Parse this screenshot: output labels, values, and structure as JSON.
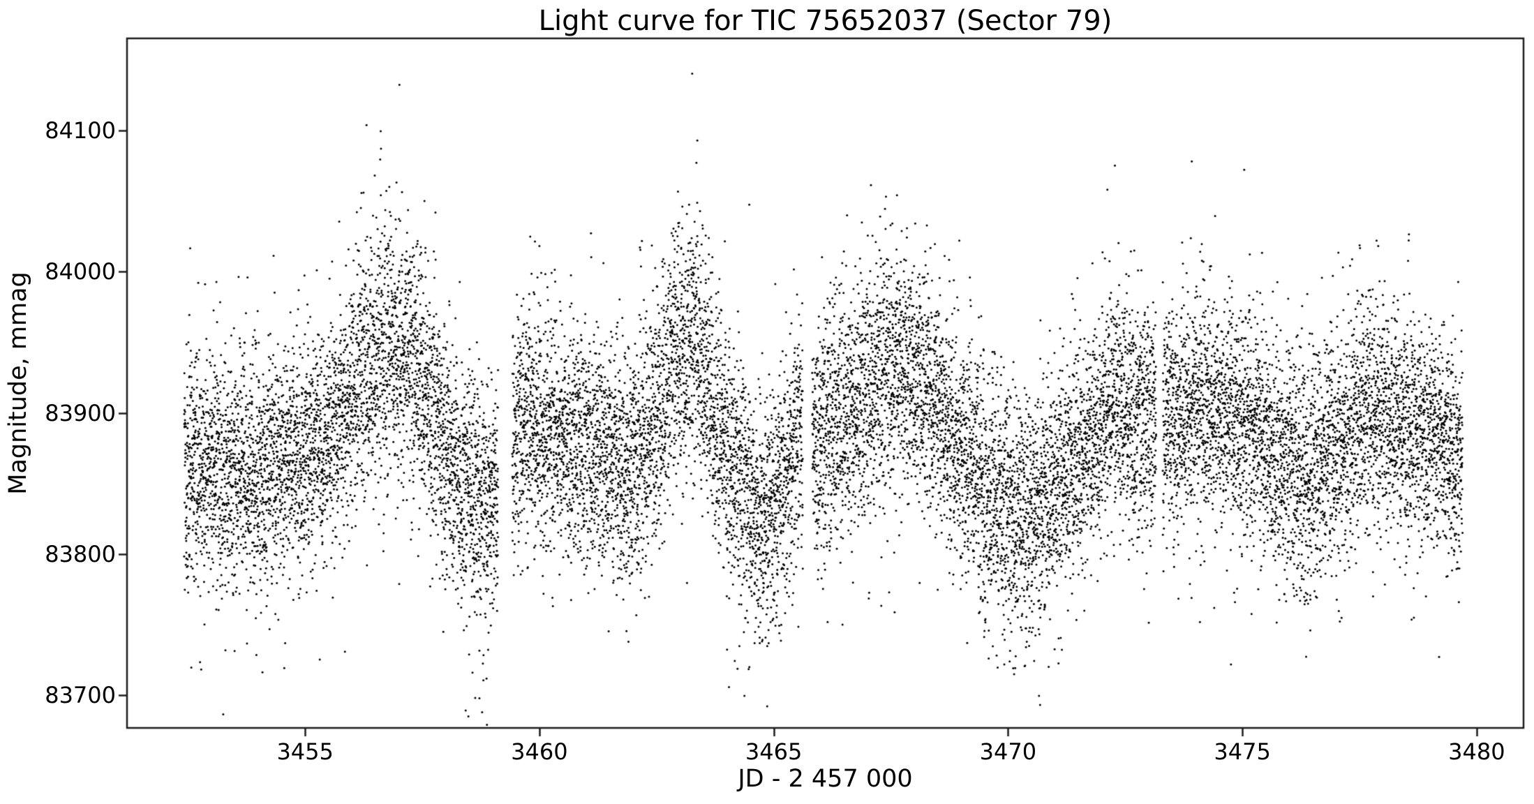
{
  "chart_data": {
    "type": "scatter",
    "title": "Light curve for TIC 75652037 (Sector 79)",
    "xlabel": "JD - 2 457 000",
    "ylabel": "Magnitude, mmag",
    "xlim": [
      3451.2,
      3481.0
    ],
    "ylim": [
      83677,
      84165
    ],
    "xticks": [
      3455,
      3460,
      3465,
      3470,
      3475,
      3480
    ],
    "yticks": [
      83700,
      83800,
      83900,
      84000,
      84100
    ],
    "grid": false,
    "legend": null,
    "marker": {
      "color": "#000000",
      "radius_px": 1.5
    },
    "x_start": 3452.42,
    "x_end": 3479.7,
    "cadence_days": 0.0015,
    "seed": 20240079,
    "gaps": [
      [
        3459.12,
        3459.42
      ],
      [
        3465.62,
        3465.82
      ],
      [
        3473.16,
        3473.3
      ]
    ],
    "mean_curve": [
      [
        3452.42,
        83862
      ],
      [
        3453.2,
        83858
      ],
      [
        3454.0,
        83860
      ],
      [
        3454.8,
        83868
      ],
      [
        3455.6,
        83885
      ],
      [
        3456.2,
        83925
      ],
      [
        3456.7,
        83948
      ],
      [
        3457.2,
        83940
      ],
      [
        3457.7,
        83900
      ],
      [
        3458.3,
        83850
      ],
      [
        3458.8,
        83832
      ],
      [
        3459.1,
        83845
      ],
      [
        3459.5,
        83888
      ],
      [
        3460.2,
        83885
      ],
      [
        3461.0,
        83875
      ],
      [
        3461.8,
        83862
      ],
      [
        3462.4,
        83885
      ],
      [
        3462.9,
        83935
      ],
      [
        3463.3,
        83945
      ],
      [
        3463.7,
        83905
      ],
      [
        3464.2,
        83852
      ],
      [
        3464.8,
        83820
      ],
      [
        3465.2,
        83845
      ],
      [
        3465.5,
        83885
      ],
      [
        3465.9,
        83880
      ],
      [
        3466.5,
        83898
      ],
      [
        3467.2,
        83922
      ],
      [
        3467.9,
        83928
      ],
      [
        3468.5,
        83905
      ],
      [
        3469.1,
        83868
      ],
      [
        3469.7,
        83838
      ],
      [
        3470.3,
        83828
      ],
      [
        3470.9,
        83842
      ],
      [
        3471.6,
        83875
      ],
      [
        3472.2,
        83900
      ],
      [
        3472.9,
        83898
      ],
      [
        3473.4,
        83892
      ],
      [
        3474.1,
        83900
      ],
      [
        3474.8,
        83898
      ],
      [
        3475.5,
        83880
      ],
      [
        3476.1,
        83860
      ],
      [
        3476.6,
        83858
      ],
      [
        3477.2,
        83885
      ],
      [
        3477.8,
        83902
      ],
      [
        3478.4,
        83892
      ],
      [
        3479.0,
        83878
      ],
      [
        3479.7,
        83872
      ]
    ],
    "sigma_curve": [
      [
        3452.42,
        40
      ],
      [
        3455.5,
        40
      ],
      [
        3456.7,
        44
      ],
      [
        3458.6,
        46
      ],
      [
        3459.6,
        42
      ],
      [
        3461.5,
        42
      ],
      [
        3463.1,
        46
      ],
      [
        3464.8,
        42
      ],
      [
        3466.0,
        42
      ],
      [
        3467.6,
        44
      ],
      [
        3469.8,
        42
      ],
      [
        3472.0,
        40
      ],
      [
        3474.5,
        40
      ],
      [
        3476.5,
        42
      ],
      [
        3478.0,
        40
      ],
      [
        3479.7,
        38
      ]
    ],
    "tail_curve": [
      [
        3452.42,
        -0.2
      ],
      [
        3455.0,
        0.2
      ],
      [
        3456.7,
        1.0
      ],
      [
        3457.6,
        0.4
      ],
      [
        3458.7,
        -1.0
      ],
      [
        3459.8,
        0.0
      ],
      [
        3461.8,
        -0.5
      ],
      [
        3463.1,
        1.0
      ],
      [
        3464.8,
        -0.8
      ],
      [
        3465.6,
        0.3
      ],
      [
        3466.3,
        0.2
      ],
      [
        3467.6,
        0.9
      ],
      [
        3468.8,
        -0.2
      ],
      [
        3470.1,
        -0.9
      ],
      [
        3471.5,
        0.0
      ],
      [
        3472.3,
        0.7
      ],
      [
        3473.9,
        0.5
      ],
      [
        3475.1,
        0.4
      ],
      [
        3476.4,
        -0.7
      ],
      [
        3477.8,
        0.4
      ],
      [
        3479.0,
        -0.3
      ],
      [
        3479.7,
        -0.3
      ]
    ],
    "outliers": [
      [
        3463.26,
        84140
      ],
      [
        3456.62,
        84087
      ],
      [
        3456.95,
        84063
      ],
      [
        3463.35,
        84077
      ],
      [
        3463.05,
        84046
      ],
      [
        3462.88,
        84022
      ],
      [
        3472.28,
        84075
      ],
      [
        3472.12,
        84058
      ],
      [
        3473.92,
        84078
      ],
      [
        3475.04,
        84072
      ],
      [
        3467.63,
        84054
      ],
      [
        3468.02,
        84034
      ],
      [
        3460.0,
        84018
      ],
      [
        3452.72,
        83992
      ],
      [
        3477.9,
        84018
      ],
      [
        3478.55,
        84022
      ],
      [
        3458.72,
        83698
      ],
      [
        3458.5,
        83729
      ],
      [
        3455.85,
        83731
      ],
      [
        3453.3,
        83732
      ],
      [
        3457.95,
        83745
      ],
      [
        3461.9,
        83738
      ],
      [
        3464.7,
        83741
      ],
      [
        3465.12,
        83744
      ],
      [
        3469.92,
        83722
      ],
      [
        3470.45,
        83735
      ],
      [
        3476.45,
        83746
      ],
      [
        3479.62,
        83766
      ],
      [
        3474.4,
        83762
      ],
      [
        3466.15,
        83752
      ]
    ],
    "axis_color": "#1c1c1c"
  }
}
